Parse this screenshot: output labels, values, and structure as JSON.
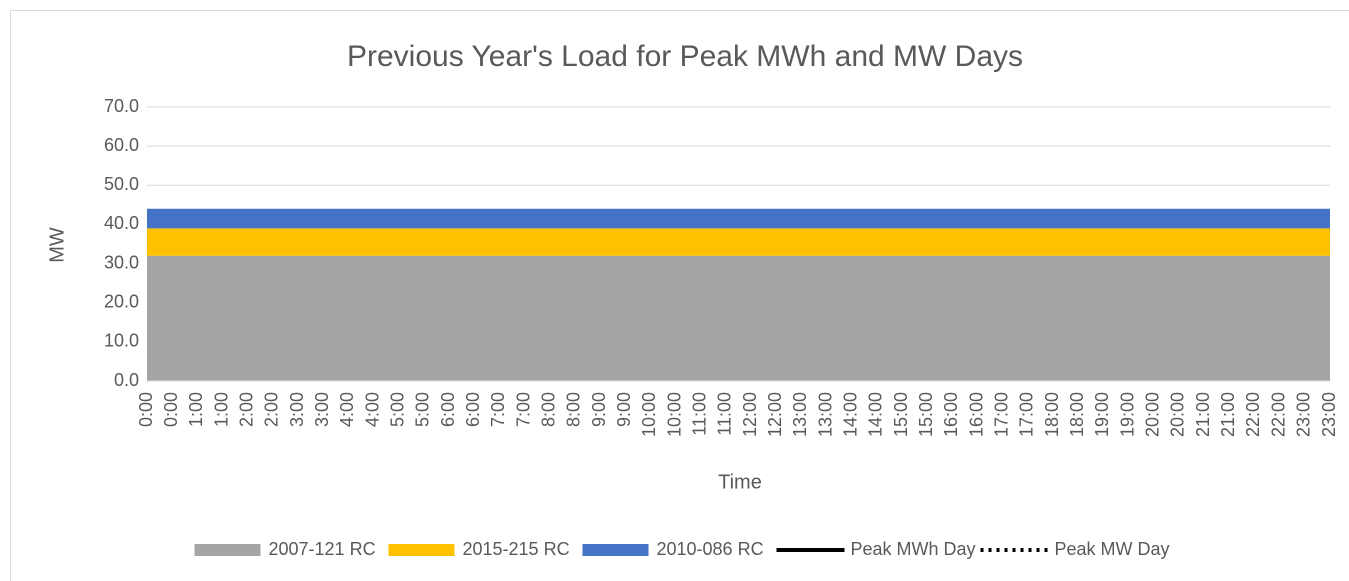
{
  "chart_data": {
    "type": "area",
    "stacked": true,
    "title": "Previous Year's Load for Peak MWh and MW Days",
    "x_label": "Time",
    "y_label": "MW",
    "categories": [
      "0:00",
      "0:00",
      "1:00",
      "1:00",
      "2:00",
      "2:00",
      "3:00",
      "3:00",
      "4:00",
      "4:00",
      "5:00",
      "5:00",
      "6:00",
      "6:00",
      "7:00",
      "7:00",
      "8:00",
      "8:00",
      "9:00",
      "9:00",
      "10:00",
      "10:00",
      "11:00",
      "11:00",
      "12:00",
      "12:00",
      "13:00",
      "13:00",
      "14:00",
      "14:00",
      "15:00",
      "15:00",
      "16:00",
      "16:00",
      "17:00",
      "17:00",
      "18:00",
      "18:00",
      "19:00",
      "19:00",
      "20:00",
      "20:00",
      "21:00",
      "21:00",
      "22:00",
      "22:00",
      "23:00",
      "23:00"
    ],
    "series": [
      {
        "name": "2007-121 RC",
        "color": "#a5a5a5",
        "values": [
          32,
          32,
          32,
          32,
          32,
          32,
          32,
          32,
          32,
          32,
          32,
          32,
          32,
          32,
          32,
          32,
          32,
          32,
          32,
          32,
          32,
          32,
          32,
          32,
          32,
          32,
          32,
          32,
          32,
          32,
          32,
          32,
          32,
          32,
          32,
          32,
          32,
          32,
          32,
          32,
          32,
          32,
          32,
          32,
          32,
          32,
          32,
          32
        ]
      },
      {
        "name": "2015-215 RC",
        "color": "#ffc000",
        "values": [
          7,
          7,
          7,
          7,
          7,
          7,
          7,
          7,
          7,
          7,
          7,
          7,
          7,
          7,
          7,
          7,
          7,
          7,
          7,
          7,
          7,
          7,
          7,
          7,
          7,
          7,
          7,
          7,
          7,
          7,
          7,
          7,
          7,
          7,
          7,
          7,
          7,
          7,
          7,
          7,
          7,
          7,
          7,
          7,
          7,
          7,
          7,
          7
        ]
      },
      {
        "name": "2010-086 RC",
        "color": "#4472c4",
        "values": [
          5,
          5,
          5,
          5,
          5,
          5,
          5,
          5,
          5,
          5,
          5,
          5,
          5,
          5,
          5,
          5,
          5,
          5,
          5,
          5,
          5,
          5,
          5,
          5,
          5,
          5,
          5,
          5,
          5,
          5,
          5,
          5,
          5,
          5,
          5,
          5,
          5,
          5,
          5,
          5,
          5,
          5,
          5,
          5,
          5,
          5,
          5,
          5
        ]
      },
      {
        "name": "Peak MWh Day",
        "color": "#000000",
        "kind": "line",
        "style": "solid",
        "values": [
          null,
          null,
          null,
          null,
          null,
          null,
          null,
          null,
          null,
          null,
          null,
          null,
          null,
          null,
          null,
          null,
          null,
          null,
          null,
          null,
          null,
          null,
          null,
          null,
          null,
          null,
          null,
          null,
          null,
          null,
          null,
          null,
          null,
          null,
          null,
          null,
          null,
          null,
          null,
          null,
          null,
          null,
          null,
          null,
          null,
          null,
          null,
          null
        ]
      },
      {
        "name": "Peak MW Day",
        "color": "#000000",
        "kind": "line",
        "style": "dotted",
        "values": [
          null,
          null,
          null,
          null,
          null,
          null,
          null,
          null,
          null,
          null,
          null,
          null,
          null,
          null,
          null,
          null,
          null,
          null,
          null,
          null,
          null,
          null,
          null,
          null,
          null,
          null,
          null,
          null,
          null,
          null,
          null,
          null,
          null,
          null,
          null,
          null,
          null,
          null,
          null,
          null,
          null,
          null,
          null,
          null,
          null,
          null,
          null,
          null
        ]
      }
    ],
    "ylim": [
      0,
      70
    ],
    "yticks": [
      {
        "value": 0,
        "label": "0.0"
      },
      {
        "value": 10,
        "label": "10.0"
      },
      {
        "value": 20,
        "label": "20.0"
      },
      {
        "value": 30,
        "label": "30.0"
      },
      {
        "value": 40,
        "label": "40.0"
      },
      {
        "value": 50,
        "label": "50.0"
      },
      {
        "value": 60,
        "label": "60.0"
      },
      {
        "value": 70,
        "label": "70.0"
      }
    ],
    "grid": true,
    "legend": "bottom"
  }
}
